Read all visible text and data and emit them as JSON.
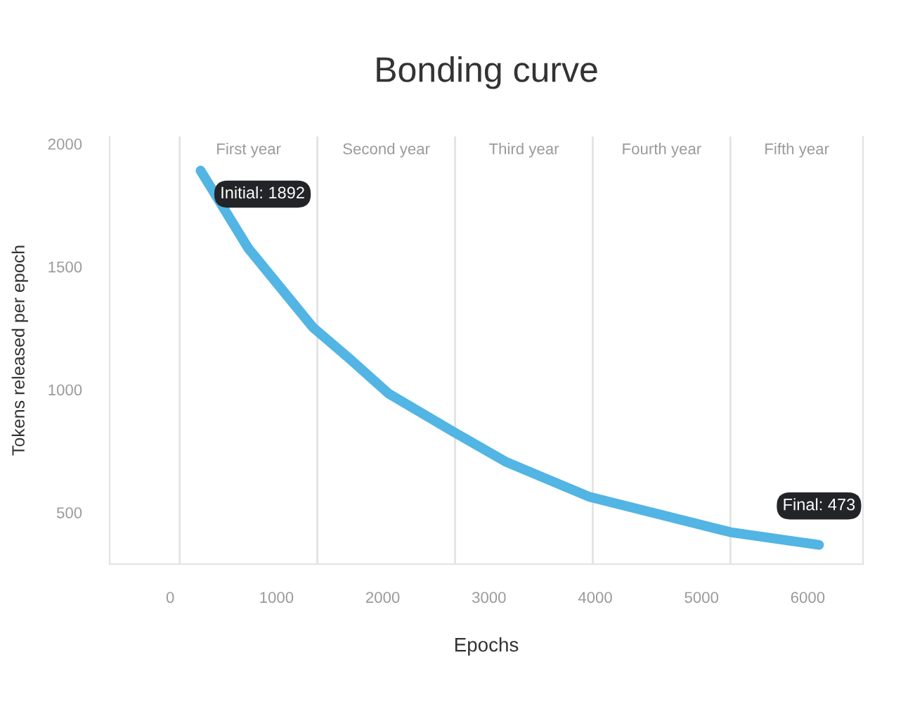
{
  "chart_data": {
    "type": "line",
    "title": "Bonding curve",
    "xlabel": "Epochs",
    "ylabel": "Tokens released per epoch",
    "x": [
      286,
      735,
      1344,
      1701,
      2058,
      2667,
      3156,
      3950,
      5272,
      6106
    ],
    "series": [
      {
        "color": "#52b5e3",
        "values": [
          1891,
          1575,
          1253,
          1121,
          983,
          828,
          707,
          563,
          420,
          368
        ]
      }
    ],
    "xlim": [
      -570,
      6520
    ],
    "xticks": [
      0,
      1000,
      2000,
      3000,
      4000,
      5000,
      6000
    ],
    "ylim": [
      290,
      2030
    ],
    "yticks": [
      500,
      1000,
      1500,
      2000
    ],
    "ref_lines": [
      {
        "axis": "x",
        "value": 89,
        "label": "First year",
        "color": "#e3e3e3"
      },
      {
        "axis": "x",
        "value": 1385,
        "label": "Second year",
        "color": "#e3e3e3"
      },
      {
        "axis": "x",
        "value": 2681,
        "label": "Third year",
        "color": "#e3e3e3"
      },
      {
        "axis": "x",
        "value": 3977,
        "label": "Fourth year",
        "color": "#e3e3e3"
      },
      {
        "axis": "x",
        "value": 5272,
        "label": "Fifth year",
        "color": "#e3e3e3"
      }
    ],
    "annotations": [
      "Initial: 1892",
      "Final: 473"
    ],
    "grid": false,
    "legend": false,
    "marker": "none",
    "line_style": "solid"
  }
}
